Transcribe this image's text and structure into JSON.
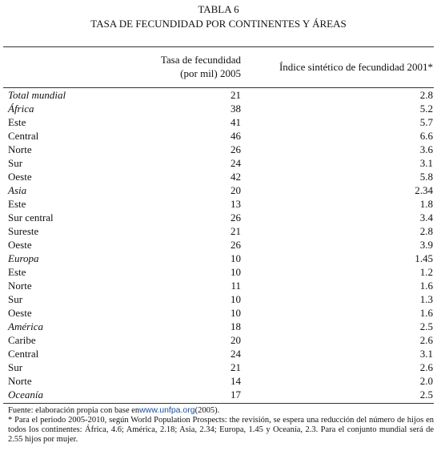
{
  "header": {
    "title": "TABLA 6",
    "subtitle": "TASA DE FECUNDIDAD POR CONTINENTES Y ÁREAS"
  },
  "table": {
    "columns": [
      [
        "Tasa de fecundidad",
        "(por mil) 2005"
      ],
      [
        "Índice sintético de fecundidad 2001*"
      ]
    ],
    "rows": [
      {
        "label": "Total mundial",
        "italic": true,
        "rate": "21",
        "index": "2.8"
      },
      {
        "label": "África",
        "italic": true,
        "rate": "38",
        "index": "5.2"
      },
      {
        "label": "Este",
        "italic": false,
        "rate": "41",
        "index": "5.7"
      },
      {
        "label": "Central",
        "italic": false,
        "rate": "46",
        "index": "6.6"
      },
      {
        "label": "Norte",
        "italic": false,
        "rate": "26",
        "index": "3.6"
      },
      {
        "label": "Sur",
        "italic": false,
        "rate": "24",
        "index": "3.1"
      },
      {
        "label": "Oeste",
        "italic": false,
        "rate": "42",
        "index": "5.8"
      },
      {
        "label": "Asia",
        "italic": true,
        "rate": "20",
        "index": "2.34"
      },
      {
        "label": "Este",
        "italic": false,
        "rate": "13",
        "index": "1.8"
      },
      {
        "label": "Sur central",
        "italic": false,
        "rate": "26",
        "index": "3.4"
      },
      {
        "label": "Sureste",
        "italic": false,
        "rate": "21",
        "index": "2.8"
      },
      {
        "label": "Oeste",
        "italic": false,
        "rate": "26",
        "index": "3.9"
      },
      {
        "label": "Europa",
        "italic": true,
        "rate": "10",
        "index": "1.45"
      },
      {
        "label": "Este",
        "italic": false,
        "rate": "10",
        "index": "1.2"
      },
      {
        "label": "Norte",
        "italic": false,
        "rate": "11",
        "index": "1.6"
      },
      {
        "label": "Sur",
        "italic": false,
        "rate": "10",
        "index": "1.3"
      },
      {
        "label": "Oeste",
        "italic": false,
        "rate": "10",
        "index": "1.6"
      },
      {
        "label": "América",
        "italic": true,
        "rate": "18",
        "index": "2.5"
      },
      {
        "label": "Caribe",
        "italic": false,
        "rate": "20",
        "index": "2.6"
      },
      {
        "label": "Central",
        "italic": false,
        "rate": "24",
        "index": "3.1"
      },
      {
        "label": "Sur",
        "italic": false,
        "rate": "21",
        "index": "2.6"
      },
      {
        "label": "Norte",
        "italic": false,
        "rate": "14",
        "index": "2.0"
      },
      {
        "label": "Oceanía",
        "italic": true,
        "rate": "17",
        "index": "2.5"
      }
    ]
  },
  "footer": {
    "source": "Fuente: elaboración propia con base en",
    "link": "www.unfpa.org",
    "source_end": "(2005).",
    "note": "* Para el periodo 2005-2010, según World Population Prospects: the revisión, se espera una reducción del número de hijos en todos los continentes: África, 4.6; América, 2.18; Asia, 2.34; Europa, 1.45 y Oceanía, 2.3. Para el conjunto mundial será de 2.55 hijos por mujer."
  }
}
